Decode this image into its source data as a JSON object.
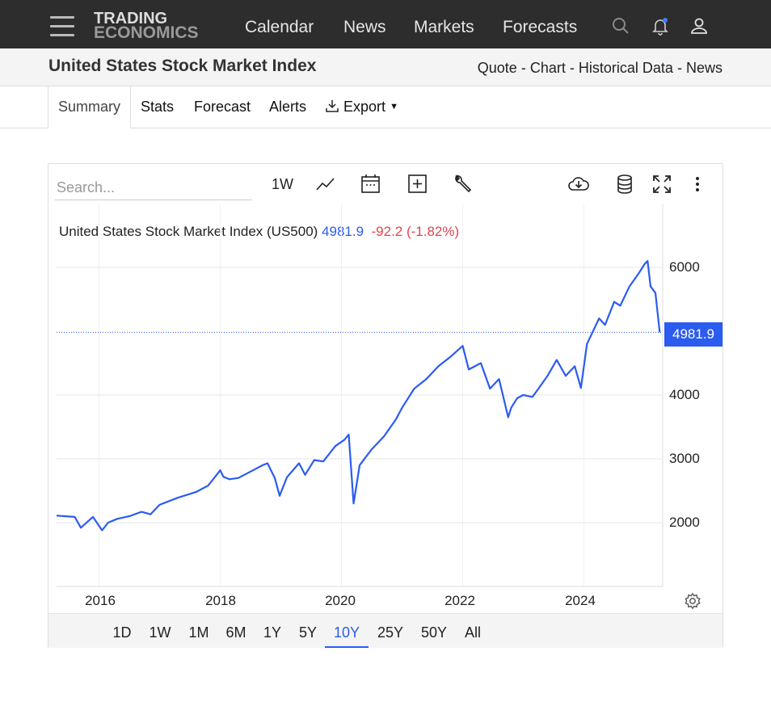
{
  "header": {
    "logo_line1": "TRADING",
    "logo_line2": "ECONOMICS",
    "nav": [
      "Calendar",
      "News",
      "Markets",
      "Forecasts"
    ],
    "icons": [
      "search-icon",
      "bell-icon",
      "user-icon",
      "menu-icon"
    ]
  },
  "subheader": {
    "title": "United States Stock Market Index",
    "links": [
      "Quote",
      "Chart",
      "Historical Data",
      "News"
    ],
    "separator": "-"
  },
  "tabs": [
    "Summary",
    "Stats",
    "Forecast",
    "Alerts",
    "Export"
  ],
  "active_tab": "Summary",
  "toolbar": {
    "search_placeholder": "Search...",
    "interval": "1W",
    "icons": [
      "line-chart-icon",
      "calendar-icon",
      "add-icon",
      "wrench-icon",
      "download-icon",
      "database-icon",
      "fullscreen-icon",
      "more-icon",
      "settings-icon"
    ]
  },
  "legend": {
    "name": "United States Stock Market Index (US500)",
    "value": "4981.9",
    "change": "-92.2 (-1.82%)"
  },
  "price_label": "4981.9",
  "ranges": [
    "1D",
    "1W",
    "1M",
    "6M",
    "1Y",
    "5Y",
    "10Y",
    "25Y",
    "50Y",
    "All"
  ],
  "active_range": "10Y",
  "colors": {
    "line": "#2b5cf0",
    "negative": "#e0464e",
    "topbar": "#2d2d2d"
  },
  "chart_data": {
    "type": "line",
    "title": "United States Stock Market Index (US500)",
    "x_ticks": [
      "2016",
      "2018",
      "2020",
      "2022",
      "2024"
    ],
    "y_ticks": [
      "2000",
      "3000",
      "4000",
      "6000"
    ],
    "ylim": [
      1000,
      6000
    ],
    "xlim": [
      2015.3,
      2025.3
    ],
    "last_value": 4981.9,
    "series": [
      {
        "name": "US500",
        "x": [
          2015.3,
          2015.45,
          2015.6,
          2015.7,
          2015.9,
          2016.05,
          2016.15,
          2016.3,
          2016.5,
          2016.7,
          2016.85,
          2017.0,
          2017.3,
          2017.6,
          2017.8,
          2018.0,
          2018.05,
          2018.15,
          2018.3,
          2018.5,
          2018.7,
          2018.78,
          2018.9,
          2018.98,
          2019.1,
          2019.3,
          2019.4,
          2019.55,
          2019.7,
          2019.9,
          2020.05,
          2020.12,
          2020.2,
          2020.3,
          2020.5,
          2020.7,
          2020.9,
          2021.0,
          2021.2,
          2021.4,
          2021.6,
          2021.8,
          2022.0,
          2022.1,
          2022.3,
          2022.45,
          2022.6,
          2022.75,
          2022.8,
          2022.9,
          2023.0,
          2023.15,
          2023.25,
          2023.4,
          2023.55,
          2023.7,
          2023.85,
          2023.95,
          2024.05,
          2024.25,
          2024.35,
          2024.5,
          2024.6,
          2024.75,
          2024.9,
          2025.0,
          2025.05,
          2025.1,
          2025.18,
          2025.25
        ],
        "values": [
          2110,
          2100,
          2090,
          1920,
          2090,
          1880,
          2000,
          2060,
          2100,
          2170,
          2130,
          2280,
          2390,
          2480,
          2580,
          2820,
          2720,
          2680,
          2700,
          2800,
          2900,
          2930,
          2700,
          2420,
          2710,
          2930,
          2750,
          2980,
          2960,
          3200,
          3300,
          3380,
          2300,
          2900,
          3150,
          3350,
          3620,
          3800,
          4100,
          4250,
          4450,
          4600,
          4770,
          4400,
          4500,
          4100,
          4250,
          3650,
          3800,
          3950,
          4000,
          3970,
          4100,
          4300,
          4550,
          4300,
          4450,
          4110,
          4800,
          5200,
          5100,
          5460,
          5400,
          5700,
          5900,
          6050,
          6100,
          5700,
          5600,
          4982
        ]
      }
    ]
  }
}
